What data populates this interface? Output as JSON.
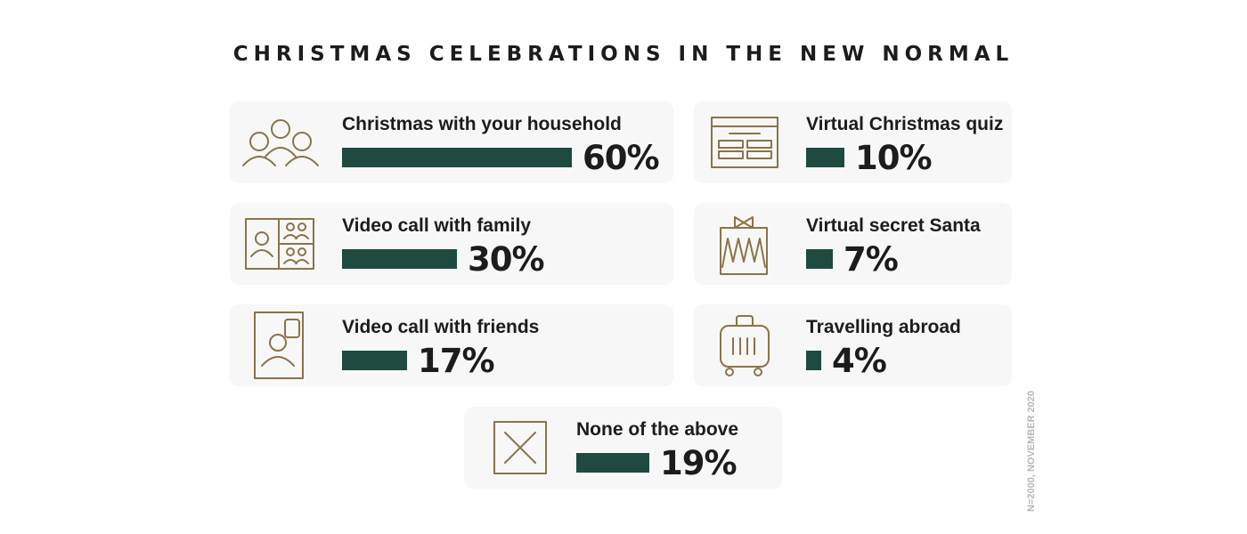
{
  "title": "CHRISTMAS CELEBRATIONS IN THE NEW NORMAL",
  "note": "N=2000, NOVEMBER 2020",
  "colors": {
    "bar": "#1f4a3f",
    "icon": "#8a744a",
    "card": "#f7f7f7"
  },
  "chart_data": {
    "type": "bar",
    "title": "CHRISTMAS CELEBRATIONS IN THE NEW NORMAL",
    "unit": "%",
    "categories": [
      "Christmas with your household",
      "Video call with family",
      "Video call with friends",
      "Virtual Christmas quiz",
      "Virtual secret Santa",
      "Travelling abroad",
      "None of the above"
    ],
    "values": [
      60,
      30,
      17,
      10,
      7,
      4,
      19
    ],
    "items": [
      {
        "label": "Christmas with your household",
        "value": 60,
        "pct": "60%",
        "icon": "people-group-icon"
      },
      {
        "label": "Video call with family",
        "value": 30,
        "pct": "30%",
        "icon": "video-grid-icon"
      },
      {
        "label": "Video call with friends",
        "value": 17,
        "pct": "17%",
        "icon": "phone-chat-icon"
      },
      {
        "label": "Virtual Christmas quiz",
        "value": 10,
        "pct": "10%",
        "icon": "quiz-screen-icon"
      },
      {
        "label": "Virtual secret Santa",
        "value": 7,
        "pct": "7%",
        "icon": "gift-box-icon"
      },
      {
        "label": "Travelling abroad",
        "value": 4,
        "pct": "4%",
        "icon": "suitcase-icon"
      },
      {
        "label": "None of the above",
        "value": 19,
        "pct": "19%",
        "icon": "cross-box-icon"
      }
    ]
  }
}
